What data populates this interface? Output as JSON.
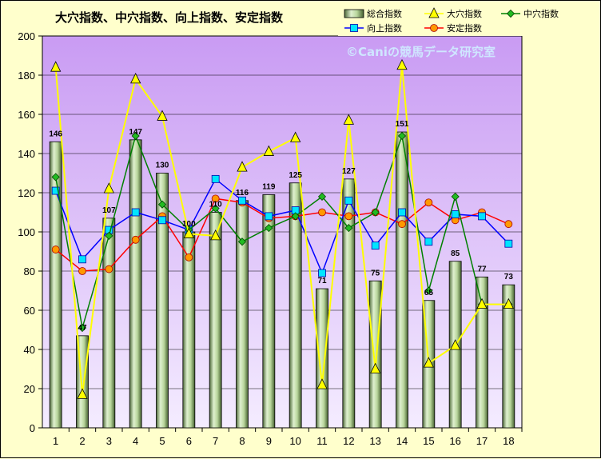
{
  "colors": {
    "background": "#ffffcc",
    "plot_top": "#c99bf3",
    "plot_bottom": "#f4ecff",
    "bar_fill": "#a9c98a",
    "daiana": "#ffff00",
    "chuana": "#008000",
    "kojo": "#0000ff",
    "antei": "#ff0000"
  },
  "chart_data": {
    "type": "bar",
    "title": "大穴指数、中穴指数、向上指数、安定指数",
    "watermark": "©Caniの競馬データ研究室",
    "xlabel": "",
    "ylabel": "",
    "ylim": [
      0,
      200
    ],
    "yticks": [
      0,
      20,
      40,
      60,
      80,
      100,
      120,
      140,
      160,
      180,
      200
    ],
    "grid": true,
    "legend_position": "top-right",
    "categories": [
      "1",
      "2",
      "3",
      "4",
      "5",
      "6",
      "7",
      "8",
      "9",
      "10",
      "11",
      "12",
      "13",
      "14",
      "15",
      "16",
      "17",
      "18"
    ],
    "series": [
      {
        "name": "総合指数",
        "type": "bar",
        "values": [
          146,
          47,
          107,
          147,
          130,
          100,
          110,
          116,
          119,
          125,
          71,
          127,
          75,
          151,
          65,
          85,
          77,
          73
        ]
      },
      {
        "name": "大穴指数",
        "type": "line",
        "marker": "triangle",
        "values": [
          184,
          17,
          122,
          178,
          159,
          99,
          98,
          133,
          141,
          148,
          22,
          157,
          30,
          185,
          33,
          42,
          63,
          63
        ]
      },
      {
        "name": "中穴指数",
        "type": "line",
        "marker": "diamond",
        "values": [
          128,
          51,
          98,
          149,
          114,
          101,
          112,
          95,
          102,
          108,
          118,
          102,
          110,
          149,
          70,
          118,
          63,
          63
        ]
      },
      {
        "name": "向上指数",
        "type": "line",
        "marker": "square",
        "values": [
          121,
          86,
          101,
          110,
          106,
          101,
          127,
          116,
          108,
          111,
          79,
          116,
          93,
          110,
          95,
          109,
          108,
          94
        ]
      },
      {
        "name": "安定指数",
        "type": "line",
        "marker": "circle",
        "values": [
          91,
          80,
          81,
          96,
          108,
          87,
          117,
          115,
          107,
          108,
          110,
          108,
          110,
          104,
          115,
          106,
          110,
          104
        ]
      }
    ]
  }
}
